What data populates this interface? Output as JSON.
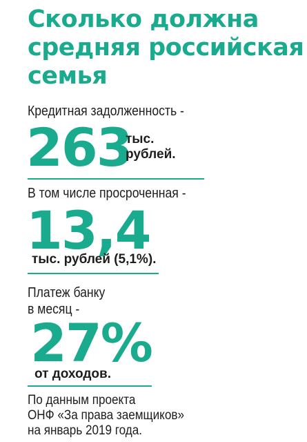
{
  "title": {
    "lines": [
      "Сколько должна",
      "средняя российская",
      "семья"
    ]
  },
  "blocks": [
    {
      "label": "Кредитная задолженность -",
      "value": "263",
      "unit_lines": [
        "тыс.",
        "рублей."
      ]
    },
    {
      "label": "В том числе просроченная -",
      "value": "13,4",
      "unit": "тыс. рублей (5,1%)."
    },
    {
      "label_lines": [
        "Платеж банку",
        "в месяц -"
      ],
      "value": "27%",
      "unit": "от доходов."
    }
  ],
  "source": {
    "lines": [
      "По данным проекта",
      "ОНФ «За права заемщиков»",
      "на январь 2019 года."
    ]
  },
  "colors": {
    "accent": "#1aab8e",
    "text": "#1d1d1b"
  }
}
